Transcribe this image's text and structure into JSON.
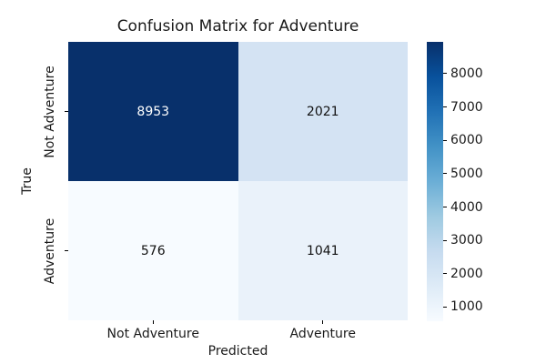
{
  "figure": {
    "background": "#ffffff",
    "text_color": "#1a1a1a"
  },
  "chart_data": {
    "type": "heatmap",
    "title": "Confusion Matrix for Adventure",
    "xlabel": "Predicted",
    "ylabel": "True",
    "x_tick_labels": [
      "Not Adventure",
      "Adventure"
    ],
    "y_tick_labels": [
      "Not Adventure",
      "Adventure"
    ],
    "matrix": [
      [
        8953,
        2021
      ],
      [
        576,
        1041
      ]
    ],
    "vmin": 576,
    "vmax": 8953,
    "colormap": "Blues",
    "grid": false,
    "legend_position": "right-colorbar",
    "colorbar_ticks": [
      1000,
      2000,
      3000,
      4000,
      5000,
      6000,
      7000,
      8000
    ],
    "cell_colors": [
      [
        "#08306b",
        "#d4e3f3"
      ],
      [
        "#f7fbff",
        "#eaf2fa"
      ]
    ],
    "cell_text_colors": [
      [
        "#ffffff",
        "#111111"
      ],
      [
        "#111111",
        "#111111"
      ]
    ],
    "colorbar_gradient": [
      "#08306b",
      "#08519c",
      "#2171b5",
      "#4292c6",
      "#6baed6",
      "#9ecae1",
      "#c6dbef",
      "#deebf7",
      "#f7fbff"
    ]
  }
}
